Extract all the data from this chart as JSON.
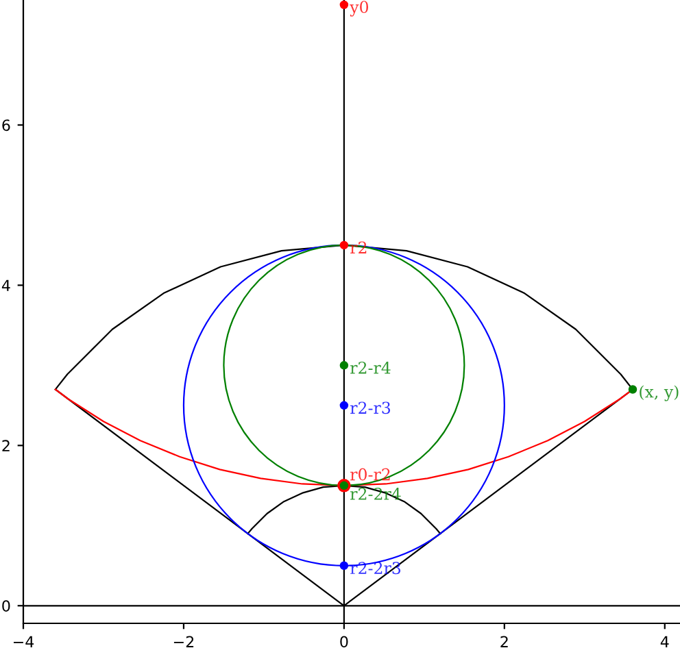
{
  "chart_data": {
    "type": "line",
    "xlim": [
      -4,
      4.19
    ],
    "ylim": [
      -0.22,
      7.56
    ],
    "xticks": [
      -4,
      -2,
      0,
      2,
      4
    ],
    "yticks": [
      0,
      2,
      4,
      6
    ],
    "grid": false,
    "legend": false,
    "line_style": "solid",
    "marker": "none",
    "series": [
      {
        "type": "line",
        "color": "#000000",
        "x": [
          -4,
          4.19
        ],
        "values": [
          0,
          0
        ]
      },
      {
        "type": "line",
        "color": "#000000",
        "x": [
          0,
          0
        ],
        "values": [
          -0.22,
          7.56
        ]
      },
      {
        "type": "line",
        "color": "#000000",
        "x": [
          3.6,
          3.45,
          2.89,
          2.25,
          1.54,
          0.78,
          0,
          -0.78,
          -1.54,
          -2.25,
          -2.89,
          -3.45,
          -3.6
        ],
        "values": [
          2.7,
          2.89,
          3.45,
          3.9,
          4.23,
          4.43,
          4.5,
          4.43,
          4.23,
          3.9,
          3.45,
          2.89,
          2.7
        ]
      },
      {
        "type": "line",
        "color": "#000000",
        "x": [
          -3.6,
          0,
          3.6
        ],
        "values": [
          2.7,
          0,
          2.7
        ]
      },
      {
        "type": "line",
        "color": "#000000",
        "x": [
          1.2,
          1.15,
          0.96,
          0.75,
          0.51,
          0.26,
          0,
          -0.26,
          -0.51,
          -0.75,
          -0.96,
          -1.15,
          -1.2
        ],
        "values": [
          0.9,
          0.96,
          1.15,
          1.3,
          1.41,
          1.48,
          1.5,
          1.48,
          1.41,
          1.3,
          1.15,
          0.96,
          0.9
        ]
      },
      {
        "type": "line",
        "color": "#ff0000",
        "x": [
          -3.6,
          -3.44,
          -3,
          -2.54,
          -2.05,
          -1.55,
          -1.04,
          -0.52,
          0,
          0.52,
          1.04,
          1.55,
          2.05,
          2.54,
          3,
          3.44,
          3.6
        ],
        "values": [
          2.7,
          2.58,
          2.3,
          2.06,
          1.86,
          1.7,
          1.59,
          1.52,
          1.5,
          1.52,
          1.59,
          1.7,
          1.86,
          2.06,
          2.3,
          2.58,
          2.7
        ]
      },
      {
        "type": "scatter",
        "marker": "circle",
        "name": "y0",
        "color": "#ff0000",
        "x": [
          0
        ],
        "values": [
          7.5
        ]
      },
      {
        "type": "scatter",
        "marker": "circle",
        "name": "r2",
        "color": "#ff0000",
        "x": [
          0
        ],
        "values": [
          4.5
        ]
      },
      {
        "type": "scatter",
        "marker": "circle",
        "name": "r2-r4",
        "color": "#008000",
        "x": [
          0
        ],
        "values": [
          3
        ]
      },
      {
        "type": "scatter",
        "marker": "circle",
        "name": "r2-r3",
        "color": "#0000ff",
        "x": [
          0
        ],
        "values": [
          2.5
        ]
      },
      {
        "type": "scatter",
        "marker": "circle",
        "name": "r0-r2",
        "color": "#ff0000",
        "x": [
          0
        ],
        "values": [
          1.5
        ]
      },
      {
        "type": "scatter",
        "marker": "circle",
        "name": "r2-2r4",
        "color": "#008000",
        "x": [
          0
        ],
        "values": [
          1.5
        ]
      },
      {
        "type": "scatter",
        "marker": "circle",
        "name": "r2-2r3",
        "color": "#0000ff",
        "x": [
          0
        ],
        "values": [
          0.5
        ]
      },
      {
        "type": "scatter",
        "marker": "circle",
        "name": "(x, y)",
        "color": "#008000",
        "x": [
          3.6
        ],
        "values": [
          2.7
        ]
      }
    ]
  }
}
